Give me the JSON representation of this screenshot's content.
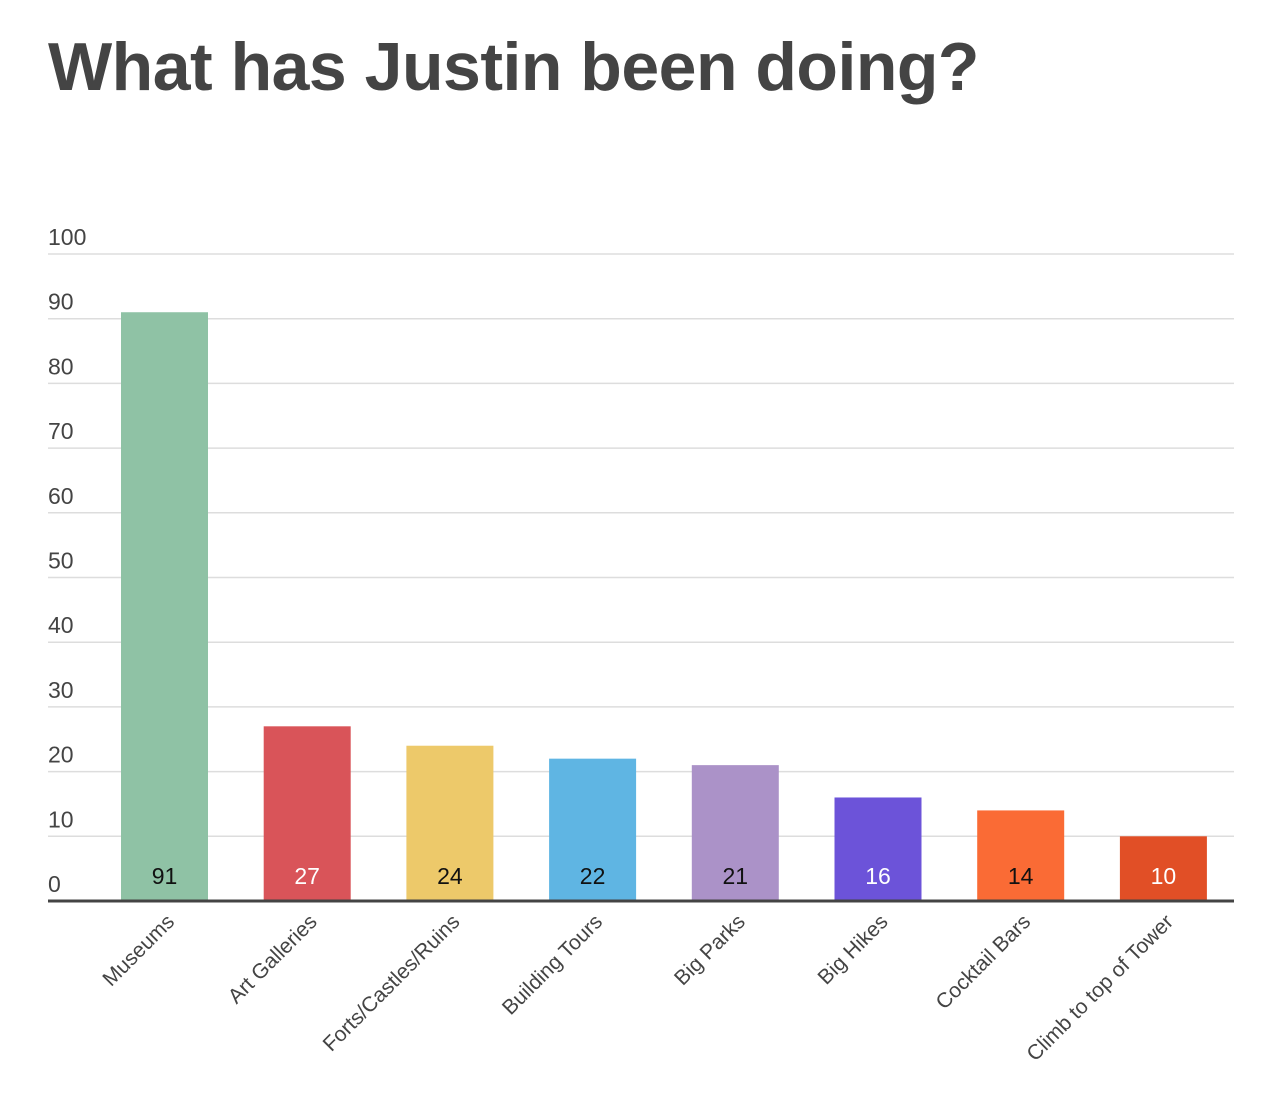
{
  "chart_data": {
    "type": "bar",
    "title": "What has Justin been doing?",
    "xlabel": "",
    "ylabel": "",
    "categories": [
      "Museums",
      "Art Galleries",
      "Forts/Castles/Ruins",
      "Building Tours",
      "Big Parks",
      "Big Hikes",
      "Cocktail Bars",
      "Climb to top of Tower"
    ],
    "values": [
      91,
      27,
      24,
      22,
      21,
      16,
      14,
      10
    ],
    "bar_colors": [
      "#8fc2a5",
      "#d95459",
      "#edc96a",
      "#5fb5e3",
      "#ab92c8",
      "#6c53d9",
      "#fa6b35",
      "#e14f26"
    ],
    "value_label_colors": [
      "#111111",
      "#ffffff",
      "#111111",
      "#111111",
      "#111111",
      "#ffffff",
      "#111111",
      "#ffffff"
    ],
    "ylim": [
      0,
      100
    ],
    "yticks": [
      0,
      10,
      20,
      30,
      40,
      50,
      60,
      70,
      80,
      90,
      100
    ],
    "grid": true,
    "gridline_color": "#dddddd",
    "axis_color": "#444444",
    "data_labels": true,
    "legend": "none"
  }
}
